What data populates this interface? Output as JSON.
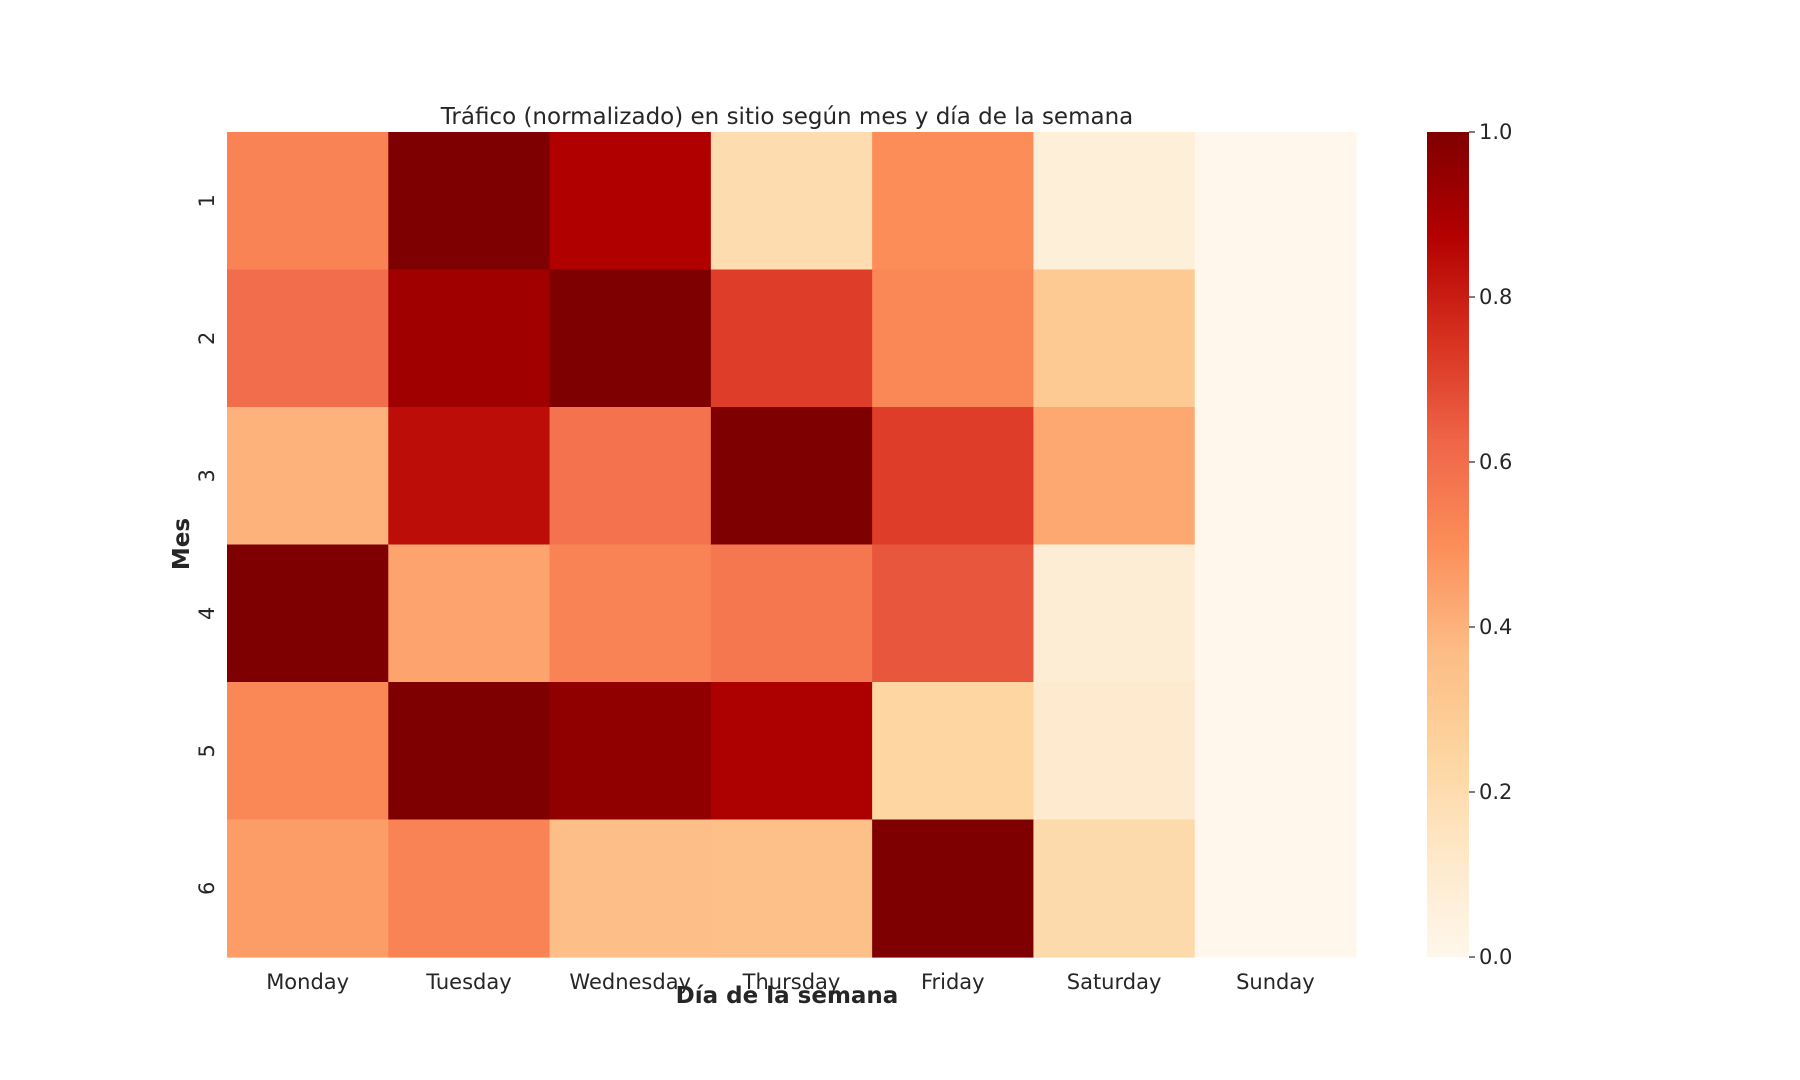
{
  "chart_data": {
    "type": "heatmap",
    "title": "Tráfico (normalizado) en sitio según mes y día de la semana",
    "xlabel": "Día de la semana",
    "ylabel": "Mes",
    "x_categories": [
      "Monday",
      "Tuesday",
      "Wednesday",
      "Thursday",
      "Friday",
      "Saturday",
      "Sunday"
    ],
    "y_categories": [
      "1",
      "2",
      "3",
      "4",
      "5",
      "6"
    ],
    "values": [
      [
        0.53,
        1.0,
        0.88,
        0.2,
        0.5,
        0.07,
        0.0
      ],
      [
        0.6,
        0.92,
        1.0,
        0.72,
        0.52,
        0.3,
        0.0
      ],
      [
        0.4,
        0.84,
        0.58,
        1.0,
        0.72,
        0.43,
        0.0
      ],
      [
        1.0,
        0.44,
        0.53,
        0.57,
        0.66,
        0.08,
        0.0
      ],
      [
        0.52,
        1.0,
        0.96,
        0.89,
        0.24,
        0.1,
        0.0
      ],
      [
        0.46,
        0.53,
        0.36,
        0.35,
        1.0,
        0.21,
        0.0
      ]
    ],
    "colorbar": {
      "min": 0.0,
      "max": 1.0,
      "ticks": [
        "0.0",
        "0.2",
        "0.4",
        "0.6",
        "0.8",
        "1.0"
      ],
      "colormap": "OrRd",
      "stops": [
        "#fff7ec",
        "#fee8c8",
        "#fdd49e",
        "#fdbb84",
        "#fc8d59",
        "#ef6548",
        "#d7301f",
        "#b30000",
        "#7f0000"
      ]
    },
    "grid": false
  }
}
